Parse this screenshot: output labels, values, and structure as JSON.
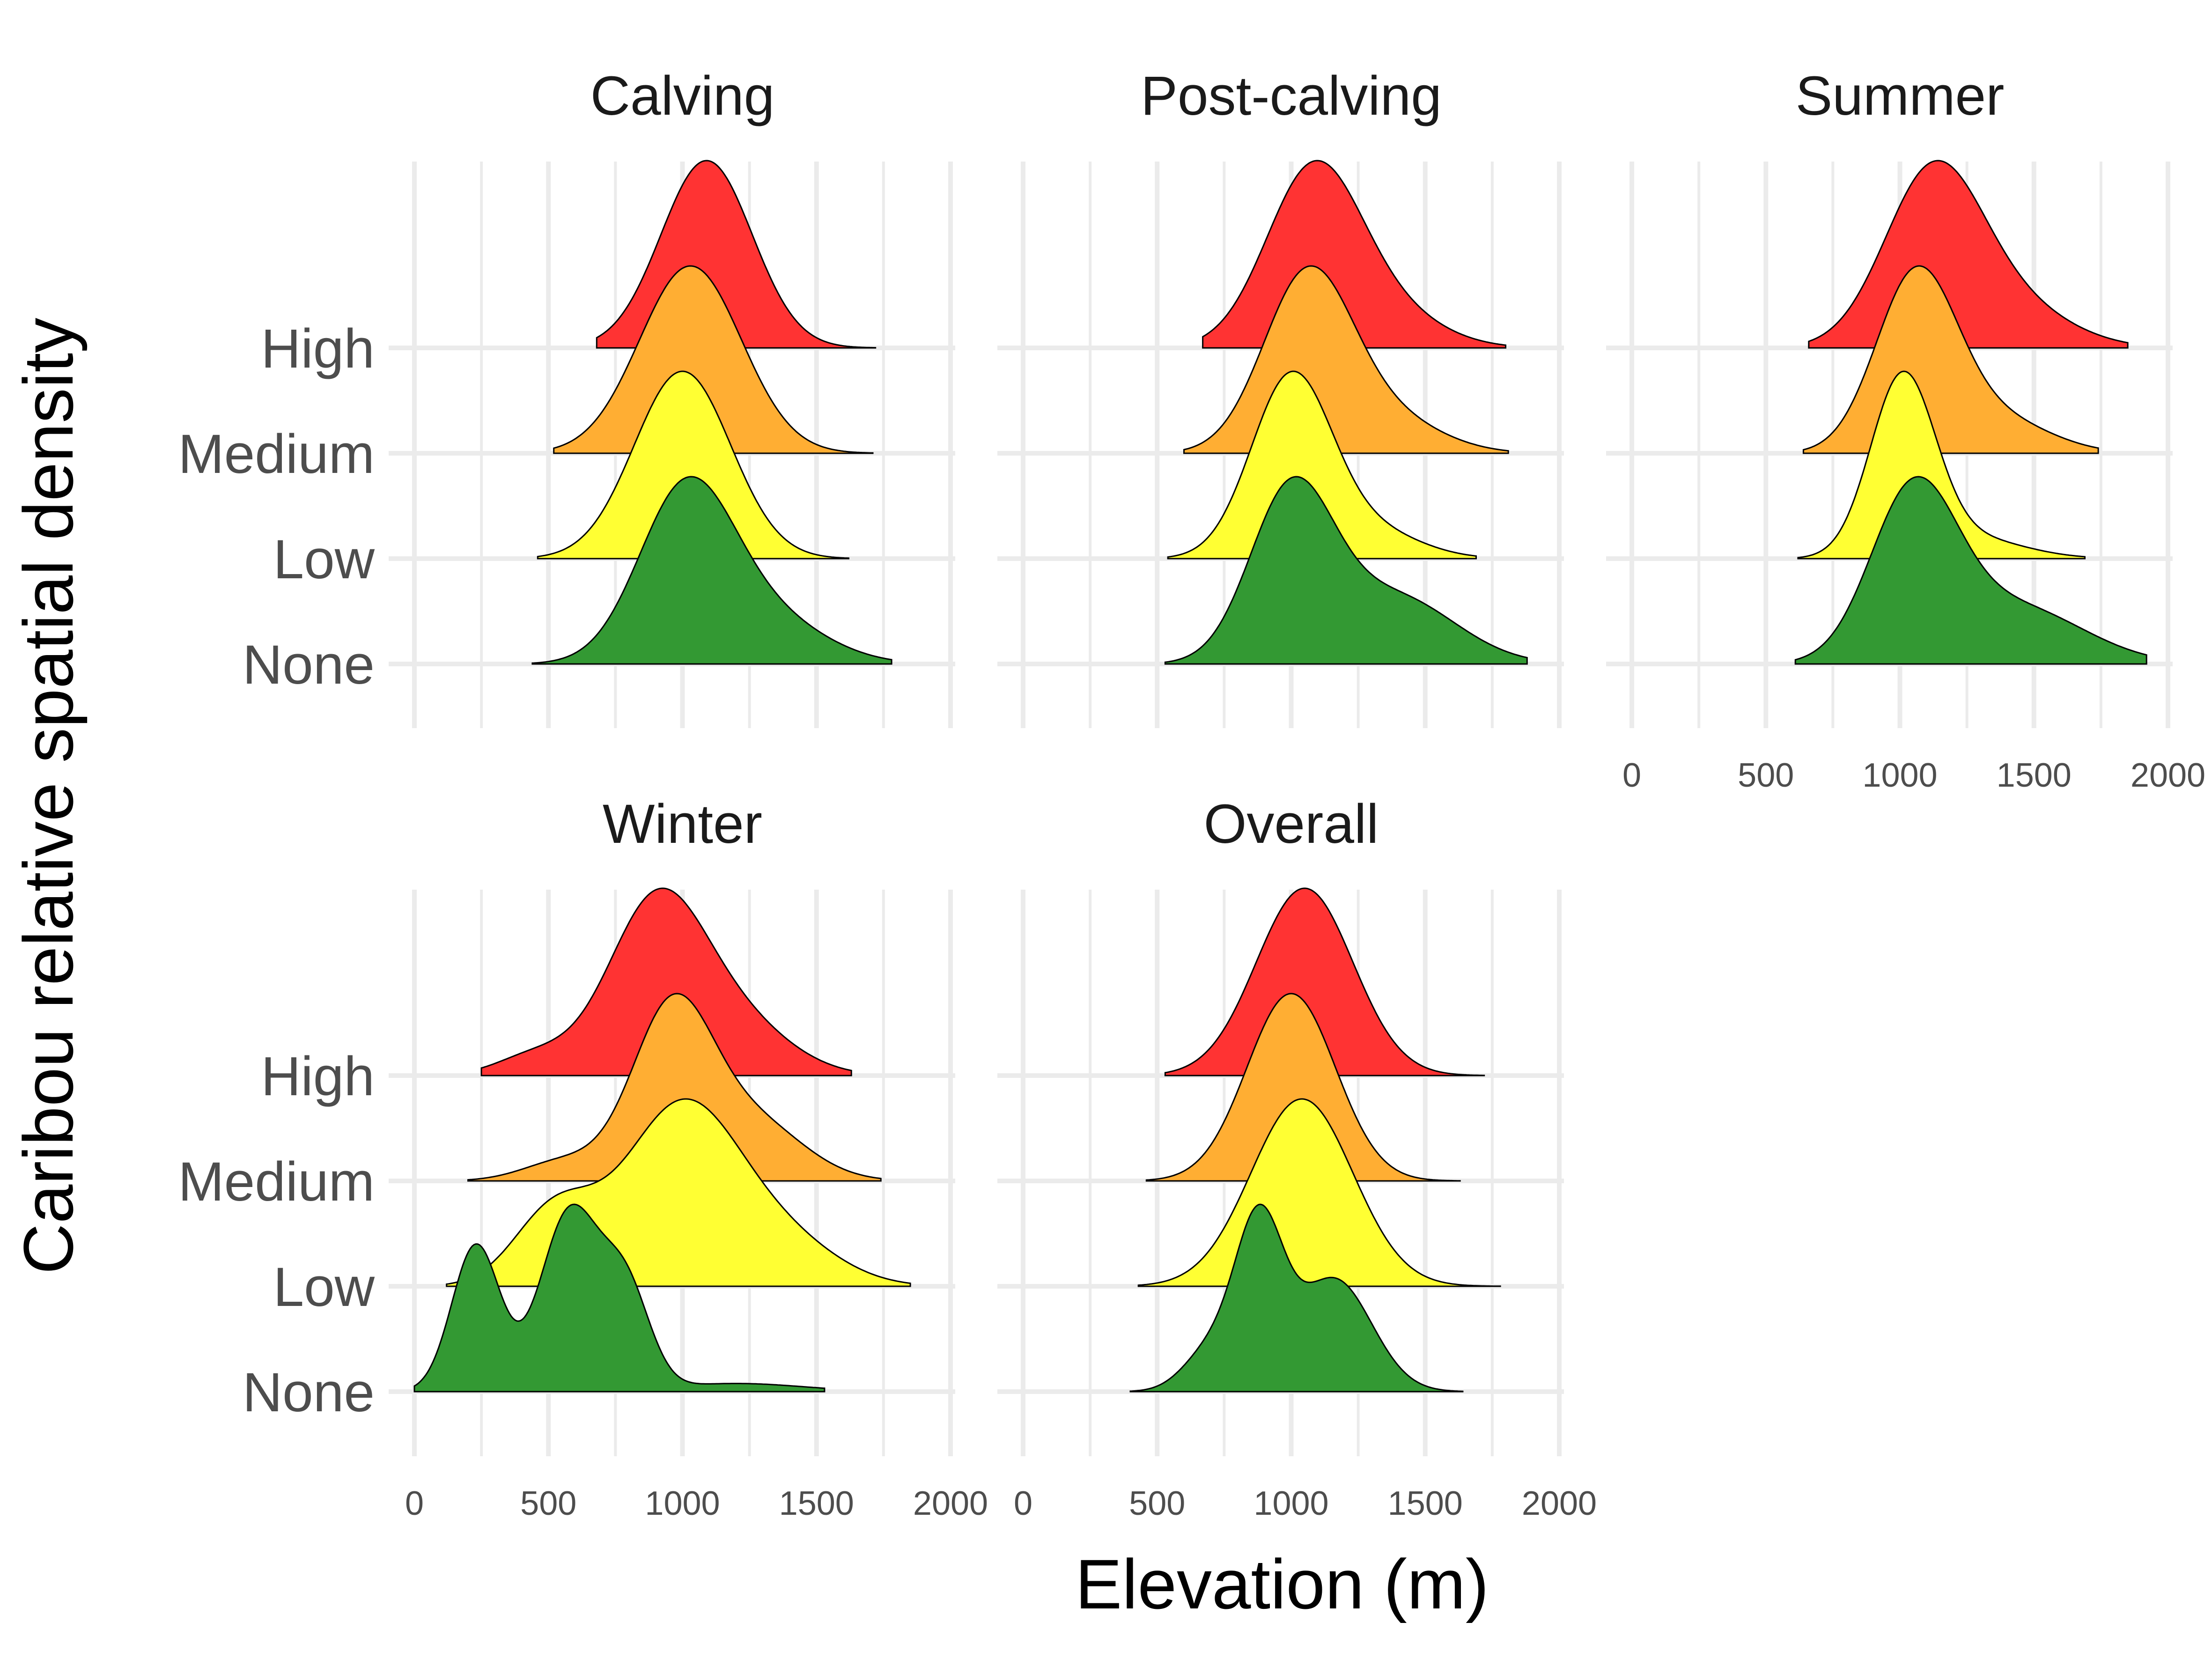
{
  "figure": {
    "xlabel": "Elevation (m)",
    "ylabel": "Caribou relative spatial density",
    "categories": [
      "None",
      "Low",
      "Medium",
      "High"
    ],
    "x_ticks": [
      0,
      500,
      1000,
      1500,
      2000
    ],
    "colors": {
      "High": "#ff3333",
      "Medium": "#ffae33",
      "Low": "#ffff33",
      "None": "#339933"
    }
  },
  "chart_data": [
    {
      "type": "ridgeline",
      "title": "Calving",
      "xlabel": "",
      "ylabel": "",
      "xlim": [
        0,
        2000
      ],
      "series": [
        {
          "name": "High",
          "range": [
            680,
            1720
          ],
          "components": [
            [
              1090,
              170,
              1
            ]
          ]
        },
        {
          "name": "Medium",
          "range": [
            520,
            1710
          ],
          "components": [
            [
              1030,
              190,
              1
            ]
          ]
        },
        {
          "name": "Low",
          "range": [
            460,
            1620
          ],
          "components": [
            [
              1000,
              180,
              1
            ]
          ]
        },
        {
          "name": "None",
          "range": [
            440,
            1780
          ],
          "components": [
            [
              1010,
              175,
              1
            ],
            [
              1300,
              220,
              0.28
            ]
          ]
        }
      ]
    },
    {
      "type": "ridgeline",
      "title": "Post-calving",
      "xlabel": "",
      "ylabel": "",
      "xlim": [
        0,
        2000
      ],
      "series": [
        {
          "name": "High",
          "range": [
            670,
            1800
          ],
          "components": [
            [
              1080,
              175,
              1
            ],
            [
              1350,
              200,
              0.2
            ]
          ]
        },
        {
          "name": "Medium",
          "range": [
            600,
            1810
          ],
          "components": [
            [
              1060,
              165,
              1
            ],
            [
              1350,
              200,
              0.2
            ]
          ]
        },
        {
          "name": "Low",
          "range": [
            540,
            1690
          ],
          "components": [
            [
              1000,
              150,
              1
            ],
            [
              1300,
              180,
              0.15
            ]
          ]
        },
        {
          "name": "None",
          "range": [
            530,
            1880
          ],
          "components": [
            [
              1000,
              155,
              1
            ],
            [
              1380,
              230,
              0.4
            ]
          ]
        }
      ]
    },
    {
      "type": "ridgeline",
      "title": "Summer",
      "xlabel": "",
      "ylabel": "",
      "xlim": [
        0,
        2000
      ],
      "series": [
        {
          "name": "High",
          "range": [
            660,
            1850
          ],
          "components": [
            [
              1120,
              180,
              1
            ],
            [
              1400,
              220,
              0.25
            ]
          ]
        },
        {
          "name": "Medium",
          "range": [
            640,
            1740
          ],
          "components": [
            [
              1060,
              150,
              1
            ],
            [
              1350,
              200,
              0.2
            ]
          ]
        },
        {
          "name": "Low",
          "range": [
            620,
            1690
          ],
          "components": [
            [
              1010,
              120,
              1
            ],
            [
              1250,
              200,
              0.12
            ]
          ]
        },
        {
          "name": "None",
          "range": [
            610,
            1920
          ],
          "components": [
            [
              1050,
              160,
              1
            ],
            [
              1420,
              260,
              0.35
            ]
          ]
        }
      ]
    },
    {
      "type": "ridgeline",
      "title": "Winter",
      "xlabel": "",
      "ylabel": "",
      "xlim": [
        0,
        2000
      ],
      "series": [
        {
          "name": "High",
          "range": [
            250,
            1630
          ],
          "components": [
            [
              900,
              180,
              1
            ],
            [
              1200,
              200,
              0.3
            ],
            [
              450,
              140,
              0.12
            ]
          ]
        },
        {
          "name": "Medium",
          "range": [
            200,
            1740
          ],
          "components": [
            [
              960,
              150,
              1
            ],
            [
              1260,
              190,
              0.35
            ],
            [
              560,
              150,
              0.12
            ]
          ]
        },
        {
          "name": "Low",
          "range": [
            120,
            1850
          ],
          "components": [
            [
              1000,
              220,
              1
            ],
            [
              520,
              150,
              0.4
            ],
            [
              1400,
              200,
              0.2
            ]
          ]
        },
        {
          "name": "None",
          "range": [
            0,
            1530
          ],
          "components": [
            [
              230,
              90,
              0.9
            ],
            [
              580,
              110,
              1.1
            ],
            [
              790,
              90,
              0.6
            ],
            [
              1200,
              250,
              0.05
            ]
          ]
        }
      ]
    },
    {
      "type": "ridgeline",
      "title": "Overall",
      "xlabel": "",
      "ylabel": "",
      "xlim": [
        0,
        2000
      ],
      "series": [
        {
          "name": "High",
          "range": [
            530,
            1720
          ],
          "components": [
            [
              1050,
              180,
              1
            ]
          ]
        },
        {
          "name": "Medium",
          "range": [
            460,
            1630
          ],
          "components": [
            [
              1000,
              165,
              1
            ]
          ]
        },
        {
          "name": "Low",
          "range": [
            430,
            1780
          ],
          "components": [
            [
              1040,
              190,
              1
            ]
          ]
        },
        {
          "name": "None",
          "range": [
            400,
            1640
          ],
          "components": [
            [
              880,
              90,
              0.8
            ],
            [
              1160,
              140,
              0.55
            ],
            [
              700,
              100,
              0.2
            ]
          ]
        }
      ]
    }
  ]
}
